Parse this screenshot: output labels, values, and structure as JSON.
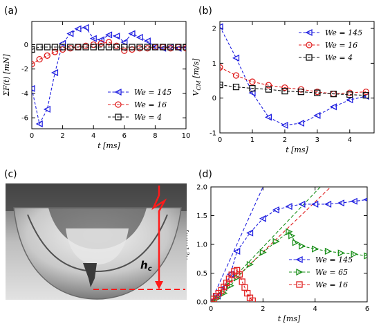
{
  "panels": [
    {
      "label": "(a)",
      "chart_data": {
        "type": "line",
        "xlabel": "t [ms]",
        "ylabel": "ΣF(t) [mN]",
        "xlim": [
          0,
          10
        ],
        "ylim": [
          -6.9,
          1.9
        ],
        "xticks": [
          0,
          2,
          4,
          6,
          8,
          10
        ],
        "yticks": [
          -6,
          -4,
          -2,
          0
        ],
        "legend_position": "lower-right",
        "series": [
          {
            "name": "We = 145",
            "marker": "triangle-left",
            "color": "#1f1fe0",
            "x": [
              0,
              0.5,
              1,
              1.5,
              2,
              2.5,
              3,
              3.5,
              4,
              4.5,
              5,
              5.5,
              6,
              6.5,
              7,
              7.5,
              8,
              8.5,
              9,
              9.5,
              10
            ],
            "y": [
              -3.6,
              -6.5,
              -5.3,
              -2.3,
              0.1,
              0.9,
              1.3,
              1.4,
              0.5,
              0.4,
              0.8,
              0.7,
              0.2,
              0.9,
              0.6,
              0.3,
              -0.2,
              -0.3,
              -0.2,
              -0.3,
              -0.2
            ]
          },
          {
            "name": "We = 16",
            "marker": "circle",
            "color": "#e02020",
            "x": [
              0,
              0.5,
              1,
              1.5,
              2,
              2.5,
              3,
              3.5,
              4,
              4.5,
              5,
              5.5,
              6,
              6.5,
              7,
              7.5,
              8,
              8.5,
              9,
              9.5,
              10
            ],
            "y": [
              -1.6,
              -1.2,
              -0.9,
              -0.6,
              -0.4,
              -0.3,
              -0.2,
              -0.1,
              0.0,
              0.1,
              0.2,
              -0.1,
              -0.5,
              -0.4,
              -0.3,
              -0.3,
              -0.2,
              -0.2,
              -0.3,
              -0.2,
              -0.3
            ]
          },
          {
            "name": "We = 4",
            "marker": "square",
            "color": "#111111",
            "x": [
              0,
              0.5,
              1,
              1.5,
              2,
              2.5,
              3,
              3.5,
              4,
              4.5,
              5,
              5.5,
              6,
              6.5,
              7,
              7.5,
              8,
              8.5,
              9,
              9.5,
              10
            ],
            "y": [
              -0.4,
              -0.2,
              -0.2,
              -0.2,
              -0.2,
              -0.2,
              -0.2,
              -0.2,
              -0.2,
              -0.2,
              -0.2,
              -0.2,
              -0.2,
              -0.2,
              -0.2,
              -0.2,
              -0.2,
              -0.2,
              -0.2,
              -0.2,
              -0.2
            ]
          }
        ]
      }
    },
    {
      "label": "(b)",
      "chart_data": {
        "type": "line",
        "xlabel": "t [ms]",
        "ylabel": "V_CM [m/s]",
        "xlim": [
          0,
          4.75
        ],
        "ylim": [
          -1,
          2.2
        ],
        "xticks": [
          0,
          1,
          2,
          3,
          4
        ],
        "yticks": [
          -1,
          0,
          1,
          2
        ],
        "legend_position": "top-right",
        "series": [
          {
            "name": "We = 145",
            "marker": "triangle-left",
            "color": "#1f1fe0",
            "x": [
              0,
              0.5,
              1,
              1.5,
              2,
              2.5,
              3,
              3.5,
              4,
              4.5
            ],
            "y": [
              2.05,
              1.15,
              0.15,
              -0.55,
              -0.78,
              -0.72,
              -0.5,
              -0.25,
              -0.05,
              0.05
            ]
          },
          {
            "name": "We = 16",
            "marker": "circle",
            "color": "#e02020",
            "x": [
              0,
              0.5,
              1,
              1.5,
              2,
              2.5,
              3,
              3.5,
              4,
              4.5
            ],
            "y": [
              0.88,
              0.65,
              0.47,
              0.37,
              0.3,
              0.25,
              0.18,
              0.12,
              0.15,
              0.18
            ]
          },
          {
            "name": "We = 4",
            "marker": "square",
            "color": "#111111",
            "x": [
              0,
              0.5,
              1,
              1.5,
              2,
              2.5,
              3,
              3.5,
              4,
              4.5
            ],
            "y": [
              0.38,
              0.32,
              0.28,
              0.25,
              0.2,
              0.18,
              0.15,
              0.12,
              0.1,
              0.08
            ]
          }
        ]
      }
    },
    {
      "label": "(c)",
      "annotation": "h_c"
    },
    {
      "label": "(d)",
      "chart_data": {
        "type": "line",
        "xlabel": "t [ms]",
        "ylabel": "h_c [mm]",
        "xlim": [
          0,
          6
        ],
        "ylim": [
          0,
          2.0
        ],
        "xticks": [
          0,
          2,
          4,
          6
        ],
        "yticks": [
          0.0,
          0.5,
          1.0,
          1.5,
          2.0
        ],
        "legend_position": "lower-right",
        "series": [
          {
            "name": "We = 145",
            "marker": "triangle-left",
            "color": "#1f1fe0",
            "x": [
              0,
              0.25,
              0.5,
              0.75,
              1,
              1.5,
              2,
              2.5,
              3,
              3.5,
              4,
              4.5,
              5,
              5.5,
              6
            ],
            "y": [
              0,
              0.1,
              0.25,
              0.48,
              0.88,
              1.2,
              1.45,
              1.6,
              1.66,
              1.7,
              1.7,
              1.7,
              1.72,
              1.75,
              1.78
            ]
          },
          {
            "name": "We = 65",
            "marker": "triangle-right",
            "color": "#1a8f1a",
            "x": [
              0,
              0.25,
              0.5,
              0.75,
              1,
              1.5,
              2,
              2.5,
              3,
              3.1,
              3.25,
              3.5,
              4,
              4.5,
              5,
              5.5,
              6
            ],
            "y": [
              0,
              0.06,
              0.15,
              0.28,
              0.42,
              0.65,
              0.86,
              1.05,
              1.22,
              1.15,
              1.03,
              0.97,
              0.92,
              0.88,
              0.85,
              0.83,
              0.8
            ]
          },
          {
            "name": "We = 16",
            "marker": "square",
            "color": "#e02020",
            "x": [
              0,
              0.1,
              0.2,
              0.3,
              0.4,
              0.5,
              0.6,
              0.7,
              0.8,
              0.9,
              1.0,
              1.1,
              1.2,
              1.3,
              1.4,
              1.5,
              1.6
            ],
            "y": [
              0,
              0.05,
              0.1,
              0.15,
              0.2,
              0.26,
              0.33,
              0.4,
              0.47,
              0.53,
              0.55,
              0.48,
              0.35,
              0.25,
              0.15,
              0.07,
              0.02
            ]
          }
        ],
        "fits": [
          {
            "color": "#1f1fe0",
            "x": [
              0,
              2.0
            ],
            "y": [
              0,
              2.0
            ]
          },
          {
            "color": "#1a8f1a",
            "x": [
              0,
              4.2
            ],
            "y": [
              0,
              2.0
            ]
          },
          {
            "color": "#e02020",
            "x": [
              0,
              4.6
            ],
            "y": [
              0,
              2.0
            ]
          }
        ]
      }
    }
  ]
}
